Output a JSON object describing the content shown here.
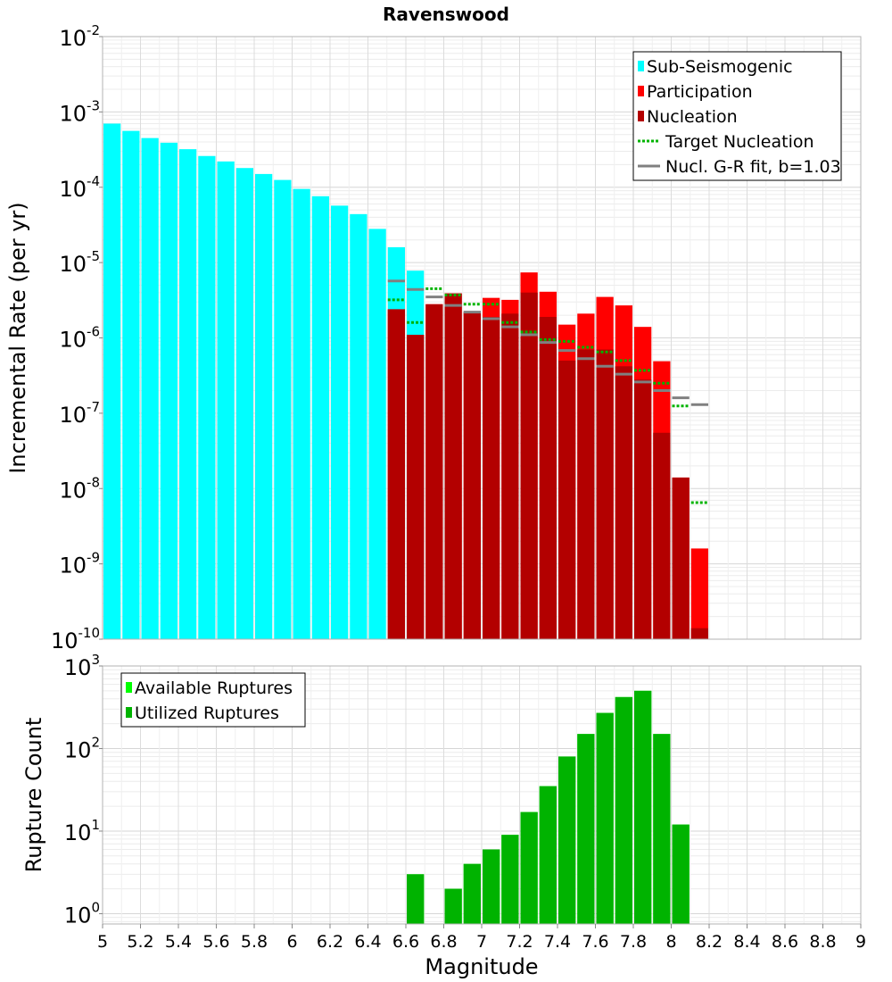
{
  "figure": {
    "title": "Ravenswood"
  },
  "chart_data": [
    {
      "type": "bar",
      "xlabel": "Magnitude",
      "ylabel": "Incremental Rate (per yr)",
      "y_scale": "log",
      "xlim": [
        5,
        9
      ],
      "ylim": [
        1e-10,
        0.01
      ],
      "grid": true,
      "legend_position": "top-right",
      "bin_width": 0.1,
      "series": [
        {
          "name": "Sub-Seismogenic",
          "kind": "bar",
          "color": "#00ffff",
          "x": [
            5.05,
            5.15,
            5.25,
            5.35,
            5.45,
            5.55,
            5.65,
            5.75,
            5.85,
            5.95,
            6.05,
            6.15,
            6.25,
            6.35,
            6.45,
            6.55,
            6.65
          ],
          "values": [
            0.0007,
            0.00056,
            0.00045,
            0.00039,
            0.00032,
            0.00026,
            0.00022,
            0.00018,
            0.00015,
            0.000125,
            9.5e-05,
            7.6e-05,
            5.7e-05,
            4.4e-05,
            2.8e-05,
            1.6e-05,
            7.8e-06
          ]
        },
        {
          "name": "Participation",
          "kind": "bar",
          "color": "#ff0000",
          "x": [
            6.55,
            6.65,
            6.75,
            6.85,
            6.95,
            7.05,
            7.15,
            7.25,
            7.35,
            7.45,
            7.55,
            7.65,
            7.75,
            7.85,
            7.95,
            8.05,
            8.15
          ],
          "values": [
            2.4e-06,
            1.1e-06,
            2.8e-06,
            3.9e-06,
            2.2e-06,
            3.4e-06,
            3.2e-06,
            7.4e-06,
            4.1e-06,
            1.5e-06,
            2.1e-06,
            3.5e-06,
            2.7e-06,
            1.4e-06,
            4.9e-07,
            1.4e-08,
            1.6e-09
          ]
        },
        {
          "name": "Nucleation",
          "kind": "bar",
          "color": "#b30000",
          "x": [
            6.55,
            6.65,
            6.75,
            6.85,
            6.95,
            7.05,
            7.15,
            7.25,
            7.35,
            7.45,
            7.55,
            7.65,
            7.75,
            7.85,
            7.95,
            8.05,
            8.15
          ],
          "values": [
            2.4e-06,
            1.1e-06,
            2.8e-06,
            3.9e-06,
            2.2e-06,
            1.9e-06,
            2.1e-06,
            4e-06,
            1.9e-06,
            5e-07,
            7e-07,
            7e-07,
            4.2e-07,
            2.8e-07,
            5.5e-08,
            1.4e-08,
            1.4e-10
          ]
        },
        {
          "name": "Target Nucleation",
          "kind": "step-dotted",
          "color": "#00b300",
          "x": [
            6.55,
            6.65,
            6.75,
            6.85,
            6.95,
            7.05,
            7.15,
            7.25,
            7.35,
            7.45,
            7.55,
            7.65,
            7.75,
            7.85,
            7.95,
            8.05,
            8.15
          ],
          "values": [
            3.2e-06,
            1.6e-06,
            4.5e-06,
            3.7e-06,
            2.8e-06,
            2.8e-06,
            1.6e-06,
            1.2e-06,
            9.5e-07,
            9e-07,
            7.5e-07,
            6.5e-07,
            5e-07,
            3.7e-07,
            2.5e-07,
            1.25e-07,
            6.5e-09
          ]
        },
        {
          "name": "Nucl. G-R fit, b=1.03",
          "kind": "step",
          "color": "#808080",
          "x": [
            6.55,
            6.65,
            6.75,
            6.85,
            6.95,
            7.05,
            7.15,
            7.25,
            7.35,
            7.45,
            7.55,
            7.65,
            7.75,
            7.85,
            7.95,
            8.05,
            8.15
          ],
          "values": [
            5.7e-06,
            4.4e-06,
            3.5e-06,
            2.7e-06,
            2.2e-06,
            1.8e-06,
            1.4e-06,
            1.1e-06,
            8.7e-07,
            6.8e-07,
            5.3e-07,
            4.2e-07,
            3.3e-07,
            2.6e-07,
            2e-07,
            1.6e-07,
            1.3e-07
          ]
        }
      ]
    },
    {
      "type": "bar",
      "xlabel": "Magnitude",
      "ylabel": "Rupture Count",
      "y_scale": "log",
      "xlim": [
        5,
        9
      ],
      "ylim": [
        0.75,
        1000
      ],
      "grid": true,
      "legend_position": "top-left",
      "bin_width": 0.1,
      "series": [
        {
          "name": "Available Ruptures",
          "kind": "bar",
          "color": "#00ff00",
          "x": [
            6.65,
            6.85,
            6.95,
            7.05,
            7.15,
            7.25,
            7.35,
            7.45,
            7.55,
            7.65,
            7.75,
            7.85,
            7.95,
            8.05
          ],
          "values": [
            3,
            2,
            4,
            6,
            9,
            17,
            35,
            80,
            150,
            270,
            420,
            500,
            150,
            12
          ]
        },
        {
          "name": "Utilized Ruptures",
          "kind": "bar",
          "color": "#00b300",
          "x": [
            6.65,
            6.85,
            6.95,
            7.05,
            7.15,
            7.25,
            7.35,
            7.45,
            7.55,
            7.65,
            7.75,
            7.85,
            7.95,
            8.05
          ],
          "values": [
            3,
            2,
            4,
            6,
            9,
            17,
            35,
            80,
            150,
            270,
            420,
            500,
            150,
            12
          ]
        }
      ],
      "x_ticks": [
        "5",
        "5.2",
        "5.4",
        "5.6",
        "5.8",
        "6",
        "6.2",
        "6.4",
        "6.6",
        "6.8",
        "7",
        "7.2",
        "7.4",
        "7.6",
        "7.8",
        "8",
        "8.2",
        "8.4",
        "8.6",
        "8.8",
        "9"
      ]
    }
  ]
}
